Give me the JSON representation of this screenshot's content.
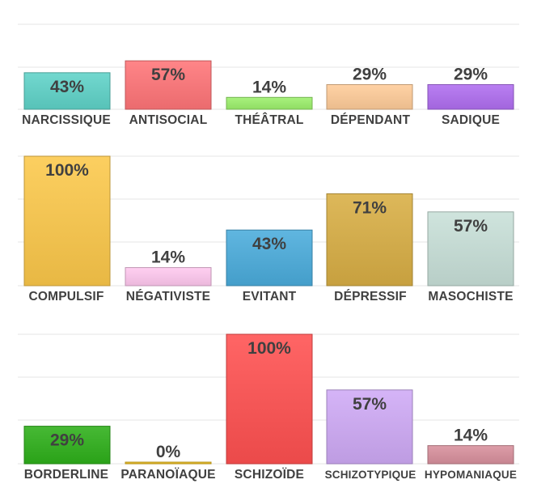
{
  "chart_data": [
    {
      "type": "bar",
      "categories": [
        "NARCISSIQUE",
        "ANTISOCIAL",
        "THÉÂTRAL",
        "DÉPENDANT",
        "SADIQUE"
      ],
      "values": [
        43,
        57,
        14,
        29,
        29
      ],
      "labels": [
        "43%",
        "57%",
        "14%",
        "29%",
        "29%"
      ],
      "colors": [
        "#5fd3c8",
        "#ff7478",
        "#9cf06c",
        "#ffcc99",
        "#b06ef0"
      ],
      "ylim": [
        0,
        100
      ],
      "grid": true
    },
    {
      "type": "bar",
      "categories": [
        "COMPULSIF",
        "NÉGATIVISTE",
        "EVITANT",
        "DÉPRESSIF",
        "MASOCHISTE"
      ],
      "values": [
        100,
        14,
        43,
        71,
        57
      ],
      "labels": [
        "100%",
        "14%",
        "43%",
        "71%",
        "57%"
      ],
      "colors": [
        "#fcc84a",
        "#ffc8ef",
        "#4aacdc",
        "#d8ae44",
        "#c8e0d8"
      ],
      "ylim": [
        0,
        100
      ],
      "grid": true
    },
    {
      "type": "bar",
      "categories": [
        "BORDERLINE",
        "PARANOÏAQUE",
        "SCHIZOÏDE",
        "SCHIZOTYPIQUE",
        "HYPOMANIAQUE"
      ],
      "values": [
        29,
        0,
        100,
        57,
        14
      ],
      "labels": [
        "29%",
        "0%",
        "100%",
        "57%",
        "14%"
      ],
      "colors": [
        "#2eb01a",
        "#f0c020",
        "#ff5050",
        "#cfaaf6",
        "#d8909c"
      ],
      "ylim": [
        0,
        100
      ],
      "grid": true
    }
  ]
}
